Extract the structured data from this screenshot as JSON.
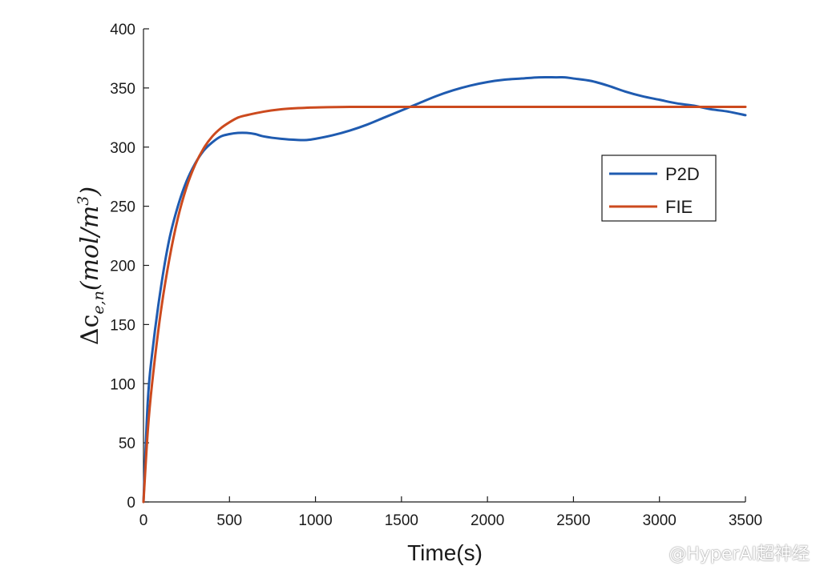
{
  "chart_data": {
    "type": "line",
    "xlabel": "Time(s)",
    "ylabel": "Δc",
    "ylabel_sub": "e,n",
    "ylabel_unit": "(mol/m",
    "ylabel_unit_sup": "3",
    "ylabel_unit_close": ")",
    "xlim": [
      0,
      3500
    ],
    "ylim": [
      0,
      400
    ],
    "xticks": [
      0,
      500,
      1000,
      1500,
      2000,
      2500,
      3000,
      3500
    ],
    "yticks": [
      0,
      50,
      100,
      150,
      200,
      250,
      300,
      350,
      400
    ],
    "grid": false,
    "legend_position": "right",
    "series": [
      {
        "name": "P2D",
        "color": "#1f5bb0",
        "x": [
          0,
          25,
          50,
          100,
          150,
          200,
          250,
          300,
          350,
          400,
          450,
          500,
          550,
          600,
          650,
          700,
          800,
          900,
          950,
          1000,
          1100,
          1200,
          1300,
          1400,
          1500,
          1600,
          1700,
          1800,
          1900,
          2000,
          2100,
          2200,
          2300,
          2400,
          2450,
          2500,
          2600,
          2700,
          2800,
          2900,
          3000,
          3100,
          3200,
          3300,
          3400,
          3500
        ],
        "y": [
          0,
          85,
          125,
          180,
          222,
          250,
          271,
          286,
          297,
          304,
          309,
          311,
          312,
          312,
          311,
          309,
          307,
          306,
          306,
          307,
          310,
          314,
          319,
          325,
          331,
          337,
          343,
          348,
          352,
          355,
          357,
          358,
          359,
          359,
          359,
          358,
          356,
          352,
          347,
          343,
          340,
          337,
          335,
          332,
          330,
          327
        ]
      },
      {
        "name": "FIE",
        "color": "#cc4a1e",
        "x": [
          0,
          25,
          50,
          100,
          150,
          200,
          250,
          300,
          350,
          400,
          450,
          500,
          550,
          600,
          700,
          800,
          900,
          1000,
          1200,
          1500,
          2000,
          2500,
          3000,
          3500
        ],
        "y": [
          0,
          60,
          100,
          160,
          205,
          240,
          266,
          285,
          299,
          309,
          316,
          321,
          325,
          327,
          330,
          332,
          333,
          333.5,
          334,
          334,
          334,
          334,
          334,
          334
        ]
      }
    ]
  },
  "watermark": "@HyperAI超神经"
}
